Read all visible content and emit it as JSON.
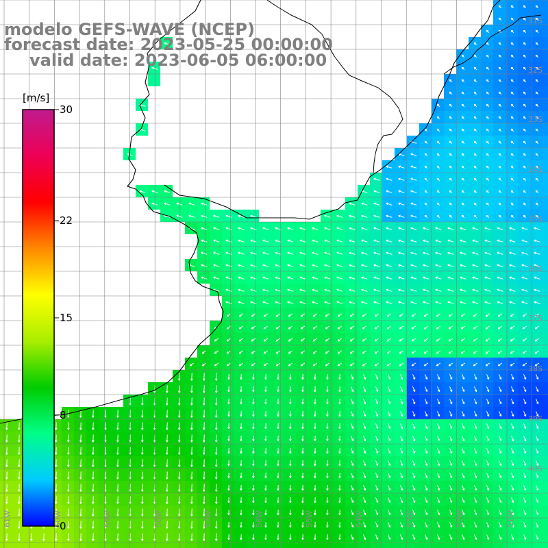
{
  "title": {
    "line1": "modelo GEFS-WAVE (NCEP)",
    "line2": "forecast date: 2023-05-25 00:00:00",
    "line3": "valid date: 2023-06-05 06:00:00"
  },
  "colorbar": {
    "unit": "[m/s]",
    "min": 0,
    "max": 30,
    "ticks": [
      {
        "value": 30,
        "label": "30"
      },
      {
        "value": 22,
        "label": "22"
      },
      {
        "value": 15,
        "label": "15"
      },
      {
        "value": 8,
        "label": "8"
      },
      {
        "value": 0,
        "label": "0"
      }
    ],
    "stops": [
      "#0000ff",
      "#00ccff",
      "#00ff88",
      "#00cc00",
      "#aaee00",
      "#ffff00",
      "#ff8800",
      "#ff0000",
      "#ee0055",
      "#c01a8e"
    ]
  },
  "map": {
    "grid_color": "#808080",
    "coast_color": "#000000",
    "arrow_color": "#ffffff",
    "lat_labels": [
      "31S",
      "32S",
      "33S",
      "34S",
      "35S",
      "36S",
      "37S",
      "38S",
      "39S",
      "40S"
    ],
    "lon_labels": [
      "61W",
      "60W",
      "59W",
      "58W",
      "57W",
      "56W",
      "55W",
      "54W",
      "53W",
      "52W",
      "51W"
    ]
  },
  "legend": {
    "layer": "wind speed",
    "shown_as": "shaded grid with direction arrows"
  }
}
